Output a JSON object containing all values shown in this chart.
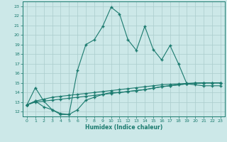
{
  "xlabel": "Humidex (Indice chaleur)",
  "xlim": [
    -0.5,
    23.5
  ],
  "ylim": [
    11.5,
    23.5
  ],
  "yticks": [
    12,
    13,
    14,
    15,
    16,
    17,
    18,
    19,
    20,
    21,
    22,
    23
  ],
  "xticks": [
    0,
    1,
    2,
    3,
    4,
    5,
    6,
    7,
    8,
    9,
    10,
    11,
    12,
    13,
    14,
    15,
    16,
    17,
    18,
    19,
    20,
    21,
    22,
    23
  ],
  "bg_color": "#cce8e8",
  "line_color": "#1a7a6e",
  "grid_color": "#aacccc",
  "line1_x": [
    0,
    1,
    2,
    3,
    4,
    5,
    6,
    7,
    8,
    9,
    10,
    11,
    12,
    13,
    14,
    15,
    16,
    17,
    18,
    19,
    20,
    21,
    22,
    23
  ],
  "line1_y": [
    12.7,
    14.5,
    13.1,
    12.2,
    11.7,
    11.7,
    16.3,
    19.0,
    19.5,
    20.9,
    22.9,
    22.2,
    19.5,
    18.4,
    20.9,
    18.5,
    17.4,
    18.9,
    17.0,
    14.9,
    14.8,
    14.7,
    14.7,
    14.7
  ],
  "line2_x": [
    0,
    1,
    2,
    3,
    4,
    5,
    6,
    7,
    8,
    9,
    10,
    11,
    12,
    13,
    14,
    15,
    16,
    17,
    18,
    19,
    20,
    21,
    22,
    23
  ],
  "line2_y": [
    12.7,
    13.1,
    13.3,
    13.5,
    13.6,
    13.7,
    13.8,
    13.9,
    14.0,
    14.1,
    14.2,
    14.3,
    14.4,
    14.5,
    14.6,
    14.7,
    14.8,
    14.85,
    14.9,
    14.95,
    15.0,
    15.0,
    15.0,
    15.0
  ],
  "line3_x": [
    0,
    1,
    2,
    3,
    4,
    5,
    6,
    7,
    8,
    9,
    10,
    11,
    12,
    13,
    14,
    15,
    16,
    17,
    18,
    19,
    20,
    21,
    22,
    23
  ],
  "line3_y": [
    12.7,
    13.0,
    13.1,
    13.2,
    13.3,
    13.4,
    13.5,
    13.6,
    13.7,
    13.8,
    13.9,
    14.0,
    14.1,
    14.2,
    14.3,
    14.45,
    14.6,
    14.7,
    14.8,
    14.9,
    14.95,
    15.0,
    15.0,
    15.0
  ],
  "line4_x": [
    0,
    1,
    2,
    3,
    4,
    5,
    6,
    7,
    8,
    9,
    10,
    11,
    12,
    13,
    14,
    15,
    16,
    17,
    18,
    19,
    20,
    21,
    22,
    23
  ],
  "line4_y": [
    12.7,
    13.1,
    12.5,
    12.2,
    11.8,
    11.7,
    12.2,
    13.2,
    13.5,
    13.8,
    14.0,
    14.0,
    14.1,
    14.2,
    14.3,
    14.45,
    14.6,
    14.7,
    14.8,
    14.9,
    14.95,
    15.0,
    15.0,
    15.0
  ]
}
